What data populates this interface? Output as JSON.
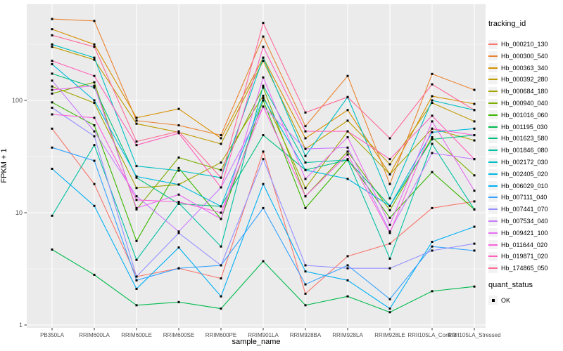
{
  "chart_data": {
    "type": "line",
    "title": "",
    "xlabel": "sample_name",
    "ylabel": "FPKM + 1",
    "y_scale": "log10",
    "ylim": [
      1,
      720
    ],
    "yticks": [
      1,
      10,
      100
    ],
    "grid": "major-and-minor-white-on-grey",
    "panel_bg_color": "#EBEBEB",
    "grid_color": "#FFFFFF",
    "point_color": "#000000",
    "tick_label_color": "#4D4D4D",
    "legend_position": "right",
    "legend_title": "tracking_id",
    "quant_legend": {
      "title": "quant_status",
      "label": "OK"
    },
    "categories": [
      "PB350LA",
      "RRIM600LA",
      "RRIM600LE",
      "RRIM600SE",
      "RRIM600PE",
      "RRIM901LA",
      "RRIM928BA",
      "RRIM928LA",
      "RRIM928LE",
      "RRII105LA_Control",
      "RRII105LA_Stressed"
    ],
    "series": [
      {
        "name": "Hb_000210_130",
        "color": "#F8766D",
        "values": [
          56,
          18,
          2.7,
          3.2,
          2.6,
          35,
          1.9,
          4.1,
          5.3,
          11,
          12.6
        ]
      },
      {
        "name": "Hb_000300_540",
        "color": "#EA8331",
        "values": [
          530,
          510,
          66,
          60,
          49,
          370,
          59,
          165,
          18,
          172,
          124
        ]
      },
      {
        "name": "Hb_000363_340",
        "color": "#D89000",
        "values": [
          430,
          315,
          70,
          84,
          46,
          240,
          46,
          82,
          22,
          109,
          93
        ]
      },
      {
        "name": "Hb_000392_280",
        "color": "#C09B00",
        "values": [
          300,
          230,
          62,
          52,
          41,
          225,
          37,
          66,
          27,
          95,
          65
        ]
      },
      {
        "name": "Hb_000684_180",
        "color": "#A3A500",
        "values": [
          133,
          95,
          16.6,
          17.8,
          28,
          110,
          16.6,
          53,
          22,
          56,
          44
        ]
      },
      {
        "name": "Hb_000940_040",
        "color": "#7CAE00",
        "values": [
          115,
          145,
          10.7,
          31,
          24,
          130,
          14,
          35,
          10.5,
          47,
          21.5
        ]
      },
      {
        "name": "Hb_001016_060",
        "color": "#39B600",
        "values": [
          96,
          60,
          5.6,
          25,
          8.8,
          100,
          11,
          30,
          9,
          23,
          10.7
        ]
      },
      {
        "name": "Hb_001195_030",
        "color": "#00BB4E",
        "values": [
          4.7,
          2.8,
          1.5,
          1.6,
          1.4,
          3.7,
          1.5,
          1.8,
          1.3,
          2.0,
          2.2
        ]
      },
      {
        "name": "Hb_001623_580",
        "color": "#00BF7D",
        "values": [
          173,
          130,
          20.5,
          12,
          11.4,
          49,
          24,
          29.5,
          11.5,
          45,
          49
        ]
      },
      {
        "name": "Hb_001846_080",
        "color": "#00C1A3",
        "values": [
          9.4,
          40,
          3.8,
          12.2,
          5.0,
          135,
          28,
          29.5,
          3.9,
          41,
          10.7
        ]
      },
      {
        "name": "Hb_002172_030",
        "color": "#00BFC4",
        "values": [
          315,
          240,
          26,
          23.7,
          20.5,
          240,
          32,
          107,
          13.4,
          100,
          82
        ]
      },
      {
        "name": "Hb_002405_020",
        "color": "#00BAE0",
        "values": [
          210,
          100,
          21,
          17.8,
          11.4,
          105,
          24,
          20,
          11.5,
          52,
          56
        ]
      },
      {
        "name": "Hb_006029_010",
        "color": "#00B0F6",
        "values": [
          24.6,
          11.5,
          2.1,
          4.9,
          1.8,
          18,
          3.0,
          2.5,
          1.4,
          5.5,
          7.5
        ]
      },
      {
        "name": "Hb_007111_040",
        "color": "#35A2FF",
        "values": [
          38,
          29,
          2.5,
          3.2,
          3.4,
          11,
          2.3,
          3.4,
          1.7,
          5.0,
          4.6
        ]
      },
      {
        "name": "Hb_007441_070",
        "color": "#9590FF",
        "values": [
          86,
          48,
          2.7,
          6.6,
          3.4,
          30,
          3.4,
          3.2,
          3.2,
          4.6,
          5.3
        ]
      },
      {
        "name": "Hb_007534_040",
        "color": "#C77CFF",
        "values": [
          150,
          53,
          14,
          6.8,
          16.8,
          88,
          37,
          38,
          6.8,
          34,
          30
        ]
      },
      {
        "name": "Hb_009421_100",
        "color": "#E76BF3",
        "values": [
          124,
          135,
          11,
          14.5,
          8.8,
          160,
          20,
          47,
          7.8,
          65,
          15.7
        ]
      },
      {
        "name": "Hb_011644_020",
        "color": "#FA62DB",
        "values": [
          75,
          70,
          13,
          12.5,
          10,
          88,
          14,
          33,
          6.6,
          56,
          49
        ]
      },
      {
        "name": "Hb_019871_020",
        "color": "#FF62BC",
        "values": [
          225,
          165,
          40,
          51,
          16.8,
          300,
          53,
          53,
          30,
          73,
          30
        ]
      },
      {
        "name": "Hb_174865_050",
        "color": "#FF6A98",
        "values": [
          380,
          300,
          43,
          53,
          20.5,
          490,
          78,
          107,
          46,
          139,
          82
        ]
      }
    ]
  }
}
